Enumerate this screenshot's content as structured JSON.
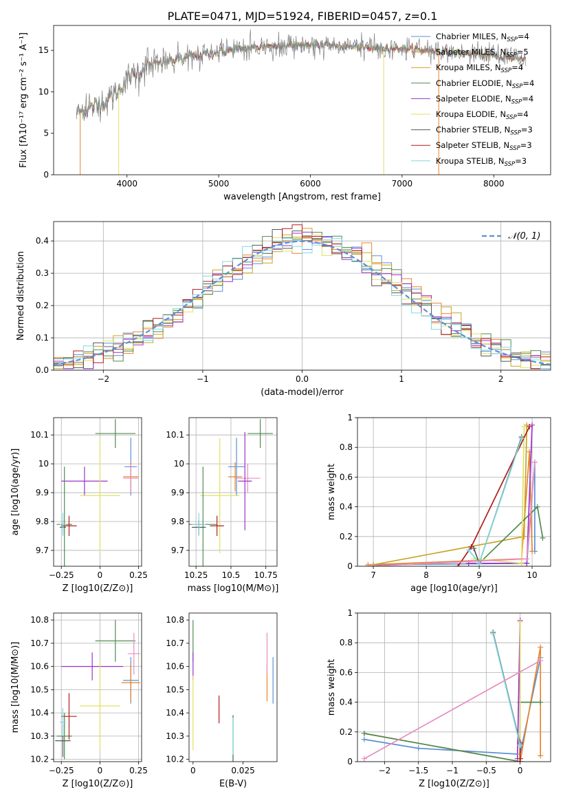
{
  "figure": {
    "title": "PLATE=0471, MJD=51924, FIBERID=0457, z=0.1"
  },
  "legend_series": [
    {
      "name": "Chabrier MILES, N",
      "sub": "SSP",
      "suffix": "=4",
      "color": "#5a8fd6"
    },
    {
      "name": "Salpeter MILES, N",
      "sub": "SSP",
      "suffix": "=5",
      "color": "#e8832a"
    },
    {
      "name": "Kroupa MILES, N",
      "sub": "SSP",
      "suffix": "=4",
      "color": "#c9a227"
    },
    {
      "name": "Chabrier ELODIE, N",
      "sub": "SSP",
      "suffix": "=4",
      "color": "#4f8a4f"
    },
    {
      "name": "Salpeter ELODIE, N",
      "sub": "SSP",
      "suffix": "=4",
      "color": "#9b30c8"
    },
    {
      "name": "Kroupa ELODIE, N",
      "sub": "SSP",
      "suffix": "=4",
      "color": "#e0e060"
    },
    {
      "name": "Chabrier STELIB, N",
      "sub": "SSP",
      "suffix": "=3",
      "color": "#555555"
    },
    {
      "name": "Salpeter STELIB, N",
      "sub": "SSP",
      "suffix": "=3",
      "color": "#b01c1c"
    },
    {
      "name": "Kroupa STELIB, N",
      "sub": "SSP",
      "suffix": "=3",
      "color": "#80d8e0"
    }
  ],
  "chart_data": [
    {
      "type": "line",
      "panel": "spectrum",
      "xlabel": "wavelength [Angstrom, rest frame]",
      "ylabel": "Flux [fλ10⁻¹⁷ erg cm⁻² s⁻¹ A⁻¹]",
      "xlim": [
        3200,
        8620
      ],
      "ylim": [
        0,
        18
      ],
      "xticks": [
        4000,
        5000,
        6000,
        7000,
        8000
      ],
      "yticks": [
        0,
        5,
        10,
        15
      ],
      "grid": false,
      "legend": "top-right",
      "x_start": 3450,
      "x_end": 8350,
      "continuum": [
        [
          3450,
          7.5
        ],
        [
          3700,
          8.5
        ],
        [
          3900,
          10.0
        ],
        [
          4000,
          11.5
        ],
        [
          4200,
          13.0
        ],
        [
          4500,
          13.8
        ],
        [
          5000,
          14.8
        ],
        [
          5500,
          15.5
        ],
        [
          6000,
          15.7
        ],
        [
          6500,
          15.4
        ],
        [
          7000,
          15.2
        ],
        [
          7500,
          14.8
        ],
        [
          8000,
          14.3
        ],
        [
          8350,
          14.0
        ]
      ],
      "dropouts": [
        [
          3490,
          "#e8832a"
        ],
        [
          3910,
          "#e0e060"
        ],
        [
          6800,
          "#e0e060"
        ],
        [
          7400,
          "#e8832a"
        ]
      ]
    },
    {
      "type": "step",
      "panel": "residuals",
      "xlabel": "(data-model)/error",
      "ylabel": "Normed distribution",
      "xlim": [
        -2.5,
        2.5
      ],
      "ylim": [
        0,
        0.46
      ],
      "xticks": [
        -2,
        -1,
        0,
        1,
        2
      ],
      "yticks": [
        0.0,
        0.1,
        0.2,
        0.3,
        0.4
      ],
      "grid": true,
      "bins": 50,
      "reference": {
        "label": "𝒩(0, 1)",
        "mean": 0,
        "sigma": 1,
        "color": "#5a8fd6"
      },
      "legend": "top-right"
    },
    {
      "type": "errorbar",
      "panel": "age-vs-Z",
      "xlabel": "Z [log10(Z/Z⊙)]",
      "ylabel": "age  [log10(age/yr)]",
      "xlim": [
        -0.3,
        0.27
      ],
      "ylim": [
        9.645,
        10.16
      ],
      "xticks": [
        -0.25,
        0.0,
        0.25
      ],
      "yticks": [
        9.7,
        9.8,
        9.9,
        10.0,
        10.1
      ],
      "grid": true,
      "points": [
        {
          "x": 0.1,
          "y": 10.105,
          "xerr": 0.13,
          "yerr": 0.05,
          "color": "#4f8a4f"
        },
        {
          "x": 0.2,
          "y": 9.99,
          "xerr": 0.04,
          "yerr": 0.1,
          "color": "#5a8fd6"
        },
        {
          "x": 0.2,
          "y": 9.955,
          "xerr": 0.05,
          "yerr": 0.05,
          "color": "#e8832a"
        },
        {
          "x": 0.2,
          "y": 9.95,
          "xerr": 0.05,
          "yerr": 0.05,
          "color": "#e88cc0"
        },
        {
          "x": -0.1,
          "y": 9.94,
          "xerr": 0.15,
          "yerr": 0.05,
          "color": "#9b30c8"
        },
        {
          "x": 0.0,
          "y": 9.89,
          "xerr": 0.13,
          "yerr": 0.2,
          "color": "#e0e060"
        },
        {
          "x": -0.23,
          "y": 9.79,
          "xerr": 0.05,
          "yerr": 0.2,
          "color": "#4f8a4f"
        },
        {
          "x": -0.2,
          "y": 9.785,
          "xerr": 0.05,
          "yerr": 0.035,
          "color": "#b01c1c"
        },
        {
          "x": -0.24,
          "y": 9.78,
          "xerr": 0.02,
          "yerr": 0.025,
          "color": "#555555"
        },
        {
          "x": -0.24,
          "y": 9.79,
          "xerr": 0.02,
          "yerr": 0.04,
          "color": "#80d8e0"
        }
      ]
    },
    {
      "type": "errorbar",
      "panel": "age-vs-mass",
      "xlabel": "mass [log10(M/M⊙)]",
      "ylabel": "",
      "xlim": [
        10.2,
        10.83
      ],
      "ylim": [
        9.645,
        10.16
      ],
      "xticks": [
        10.25,
        10.5,
        10.75
      ],
      "yticks": [
        9.7,
        9.8,
        9.9,
        10.0,
        10.1
      ],
      "grid": true,
      "points": [
        {
          "x": 10.71,
          "y": 10.105,
          "xerr": 0.09,
          "yerr": 0.05,
          "color": "#4f8a4f"
        },
        {
          "x": 10.54,
          "y": 9.99,
          "xerr": 0.06,
          "yerr": 0.1,
          "color": "#5a8fd6"
        },
        {
          "x": 10.53,
          "y": 9.955,
          "xerr": 0.05,
          "yerr": 0.05,
          "color": "#e8832a"
        },
        {
          "x": 10.62,
          "y": 9.95,
          "xerr": 0.09,
          "yerr": 0.05,
          "color": "#e88cc0"
        },
        {
          "x": 10.6,
          "y": 9.94,
          "xerr": 0.05,
          "yerr": 0.17,
          "color": "#9b30c8"
        },
        {
          "x": 10.42,
          "y": 9.89,
          "xerr": 0.14,
          "yerr": 0.2,
          "color": "#e0e060"
        },
        {
          "x": 10.3,
          "y": 9.79,
          "xerr": 0.1,
          "yerr": 0.2,
          "color": "#4f8a4f"
        },
        {
          "x": 10.4,
          "y": 9.785,
          "xerr": 0.05,
          "yerr": 0.035,
          "color": "#b01c1c"
        },
        {
          "x": 10.27,
          "y": 9.78,
          "xerr": 0.05,
          "yerr": 0.025,
          "color": "#555555"
        },
        {
          "x": 10.27,
          "y": 9.79,
          "xerr": 0.05,
          "yerr": 0.04,
          "color": "#80d8e0"
        }
      ]
    },
    {
      "type": "line",
      "panel": "mass-weight-vs-age",
      "xlabel": "age  [log10(age/yr)]",
      "ylabel": "mass weight",
      "xlim": [
        6.7,
        10.35
      ],
      "ylim": [
        0,
        1.0
      ],
      "xticks": [
        7,
        8,
        9,
        10
      ],
      "yticks": [
        0.0,
        0.2,
        0.4,
        0.6,
        0.8,
        1.0
      ],
      "grid": true,
      "series": [
        {
          "color": "#5a8fd6",
          "x": [
            7.0,
            9.9,
            10.05,
            10.05
          ],
          "y": [
            0.01,
            0.02,
            0.7,
            0.1
          ]
        },
        {
          "color": "#e8832a",
          "x": [
            6.9,
            9.8,
            9.95,
            10.0
          ],
          "y": [
            0.01,
            0.05,
            0.77,
            0.1
          ]
        },
        {
          "color": "#c9a227",
          "x": [
            7.0,
            9.85,
            9.9
          ],
          "y": [
            0.01,
            0.2,
            0.95
          ]
        },
        {
          "color": "#4f8a4f",
          "x": [
            9.0,
            10.1,
            10.2
          ],
          "y": [
            0.02,
            0.4,
            0.19
          ]
        },
        {
          "color": "#9b30c8",
          "x": [
            8.8,
            9.9,
            10.0
          ],
          "y": [
            0.02,
            0.02,
            0.95
          ]
        },
        {
          "color": "#e0e060",
          "x": [
            8.9,
            9.8,
            9.85
          ],
          "y": [
            0.05,
            0.02,
            0.94
          ]
        },
        {
          "color": "#555555",
          "x": [
            8.9,
            9.0,
            9.8
          ],
          "y": [
            0.12,
            0.02,
            0.87
          ]
        },
        {
          "color": "#b01c1c",
          "x": [
            8.6,
            8.85,
            9.95
          ],
          "y": [
            0.0,
            0.13,
            0.94
          ]
        },
        {
          "color": "#80d8e0",
          "x": [
            8.8,
            9.0,
            9.8
          ],
          "y": [
            0.11,
            0.02,
            0.86
          ]
        },
        {
          "color": "#e88cc0",
          "x": [
            6.9,
            9.9,
            10.05
          ],
          "y": [
            0.0,
            0.05,
            0.7
          ]
        }
      ]
    },
    {
      "type": "errorbar",
      "panel": "mass-vs-Z",
      "xlabel": "Z [log10(Z/Z⊙)]",
      "ylabel": "mass [log10(M/M⊙)]",
      "xlim": [
        -0.3,
        0.27
      ],
      "ylim": [
        10.19,
        10.83
      ],
      "xticks": [
        -0.25,
        0.0,
        0.25
      ],
      "yticks": [
        10.2,
        10.3,
        10.4,
        10.5,
        10.6,
        10.7,
        10.8
      ],
      "grid": true,
      "points": [
        {
          "x": 0.1,
          "y": 10.71,
          "xerr": 0.13,
          "yerr": 0.09,
          "color": "#4f8a4f"
        },
        {
          "x": 0.2,
          "y": 10.54,
          "xerr": 0.05,
          "yerr": 0.1,
          "color": "#5a8fd6"
        },
        {
          "x": 0.2,
          "y": 10.53,
          "xerr": 0.06,
          "yerr": 0.08,
          "color": "#e8832a"
        },
        {
          "x": 0.22,
          "y": 10.655,
          "xerr": 0.04,
          "yerr": 0.09,
          "color": "#e88cc0"
        },
        {
          "x": -0.05,
          "y": 10.6,
          "xerr": 0.2,
          "yerr": 0.06,
          "color": "#9b30c8"
        },
        {
          "x": 0.0,
          "y": 10.43,
          "xerr": 0.13,
          "yerr": 0.19,
          "color": "#e0e060"
        },
        {
          "x": -0.23,
          "y": 10.3,
          "xerr": 0.05,
          "yerr": 0.1,
          "color": "#4f8a4f"
        },
        {
          "x": -0.2,
          "y": 10.385,
          "xerr": 0.05,
          "yerr": 0.1,
          "color": "#b01c1c"
        },
        {
          "x": -0.24,
          "y": 10.28,
          "xerr": 0.05,
          "yerr": 0.07,
          "color": "#555555"
        },
        {
          "x": -0.24,
          "y": 10.36,
          "xerr": 0.02,
          "yerr": 0.06,
          "color": "#80d8e0"
        }
      ]
    },
    {
      "type": "errorbar",
      "panel": "mass-vs-EBV",
      "xlabel": "E(B-V)",
      "ylabel": "",
      "xlim": [
        -0.002,
        0.042
      ],
      "ylim": [
        10.19,
        10.83
      ],
      "xticks": [
        0.0,
        0.025
      ],
      "yticks": [
        10.2,
        10.3,
        10.4,
        10.5,
        10.6,
        10.7,
        10.8
      ],
      "grid": false,
      "points": [
        {
          "x": 0.0,
          "y": 10.71,
          "xerr": 0,
          "yerr": 0.09,
          "color": "#4f8a4f"
        },
        {
          "x": 0.04,
          "y": 10.54,
          "xerr": 0,
          "yerr": 0.1,
          "color": "#5a8fd6"
        },
        {
          "x": 0.037,
          "y": 10.53,
          "xerr": 0,
          "yerr": 0.08,
          "color": "#e8832a"
        },
        {
          "x": 0.037,
          "y": 10.655,
          "xerr": 0,
          "yerr": 0.09,
          "color": "#e88cc0"
        },
        {
          "x": 0.0,
          "y": 10.6,
          "xerr": 0,
          "yerr": 0.06,
          "color": "#9b30c8"
        },
        {
          "x": 0.0,
          "y": 10.4,
          "xerr": 0,
          "yerr": 0.16,
          "color": "#e0e060"
        },
        {
          "x": 0.02,
          "y": 10.29,
          "xerr": 0,
          "yerr": 0.1,
          "color": "#555555"
        },
        {
          "x": 0.013,
          "y": 10.415,
          "xerr": 0,
          "yerr": 0.06,
          "color": "#b01c1c"
        },
        {
          "x": 0.02,
          "y": 10.3,
          "xerr": 0,
          "yerr": 0.08,
          "color": "#80d8e0"
        }
      ]
    },
    {
      "type": "line",
      "panel": "mass-weight-vs-Z",
      "xlabel": "Z [log10(Z/Z⊙)]",
      "ylabel": "mass weight",
      "xlim": [
        -2.4,
        0.45
      ],
      "ylim": [
        0,
        1.0
      ],
      "xticks": [
        -2.0,
        -1.5,
        -1.0,
        -0.5,
        0.0
      ],
      "yticks": [
        0.0,
        0.2,
        0.4,
        0.6,
        0.8,
        1.0
      ],
      "grid": true,
      "series": [
        {
          "color": "#5a8fd6",
          "x": [
            -2.3,
            -1.5,
            0.0,
            0.3
          ],
          "y": [
            0.15,
            0.09,
            0.05,
            0.7
          ]
        },
        {
          "color": "#e8832a",
          "x": [
            -2.3,
            0.0,
            0.3,
            0.3
          ],
          "y": [
            0.19,
            0.0,
            0.77,
            0.04
          ]
        },
        {
          "color": "#4f8a4f",
          "x": [
            -2.3,
            0.0,
            0.0,
            0.3
          ],
          "y": [
            0.19,
            0.0,
            0.4,
            0.4
          ]
        },
        {
          "color": "#9b30c8",
          "x": [
            -0.04,
            0.0,
            0.0
          ],
          "y": [
            0.02,
            0.95,
            0.02
          ]
        },
        {
          "color": "#e0e060",
          "x": [
            0.0,
            0.0,
            0.0
          ],
          "y": [
            0.02,
            0.94,
            0.05
          ]
        },
        {
          "color": "#555555",
          "x": [
            -0.4,
            0.0
          ],
          "y": [
            0.87,
            0.12
          ]
        },
        {
          "color": "#b01c1c",
          "x": [
            0.0,
            0.0,
            0.0
          ],
          "y": [
            0.0,
            0.13,
            0.02
          ]
        },
        {
          "color": "#80d8e0",
          "x": [
            -0.4,
            0.0
          ],
          "y": [
            0.86,
            0.11
          ]
        },
        {
          "color": "#e88cc0",
          "x": [
            -2.3,
            0.3
          ],
          "y": [
            0.02,
            0.68
          ]
        }
      ]
    }
  ]
}
